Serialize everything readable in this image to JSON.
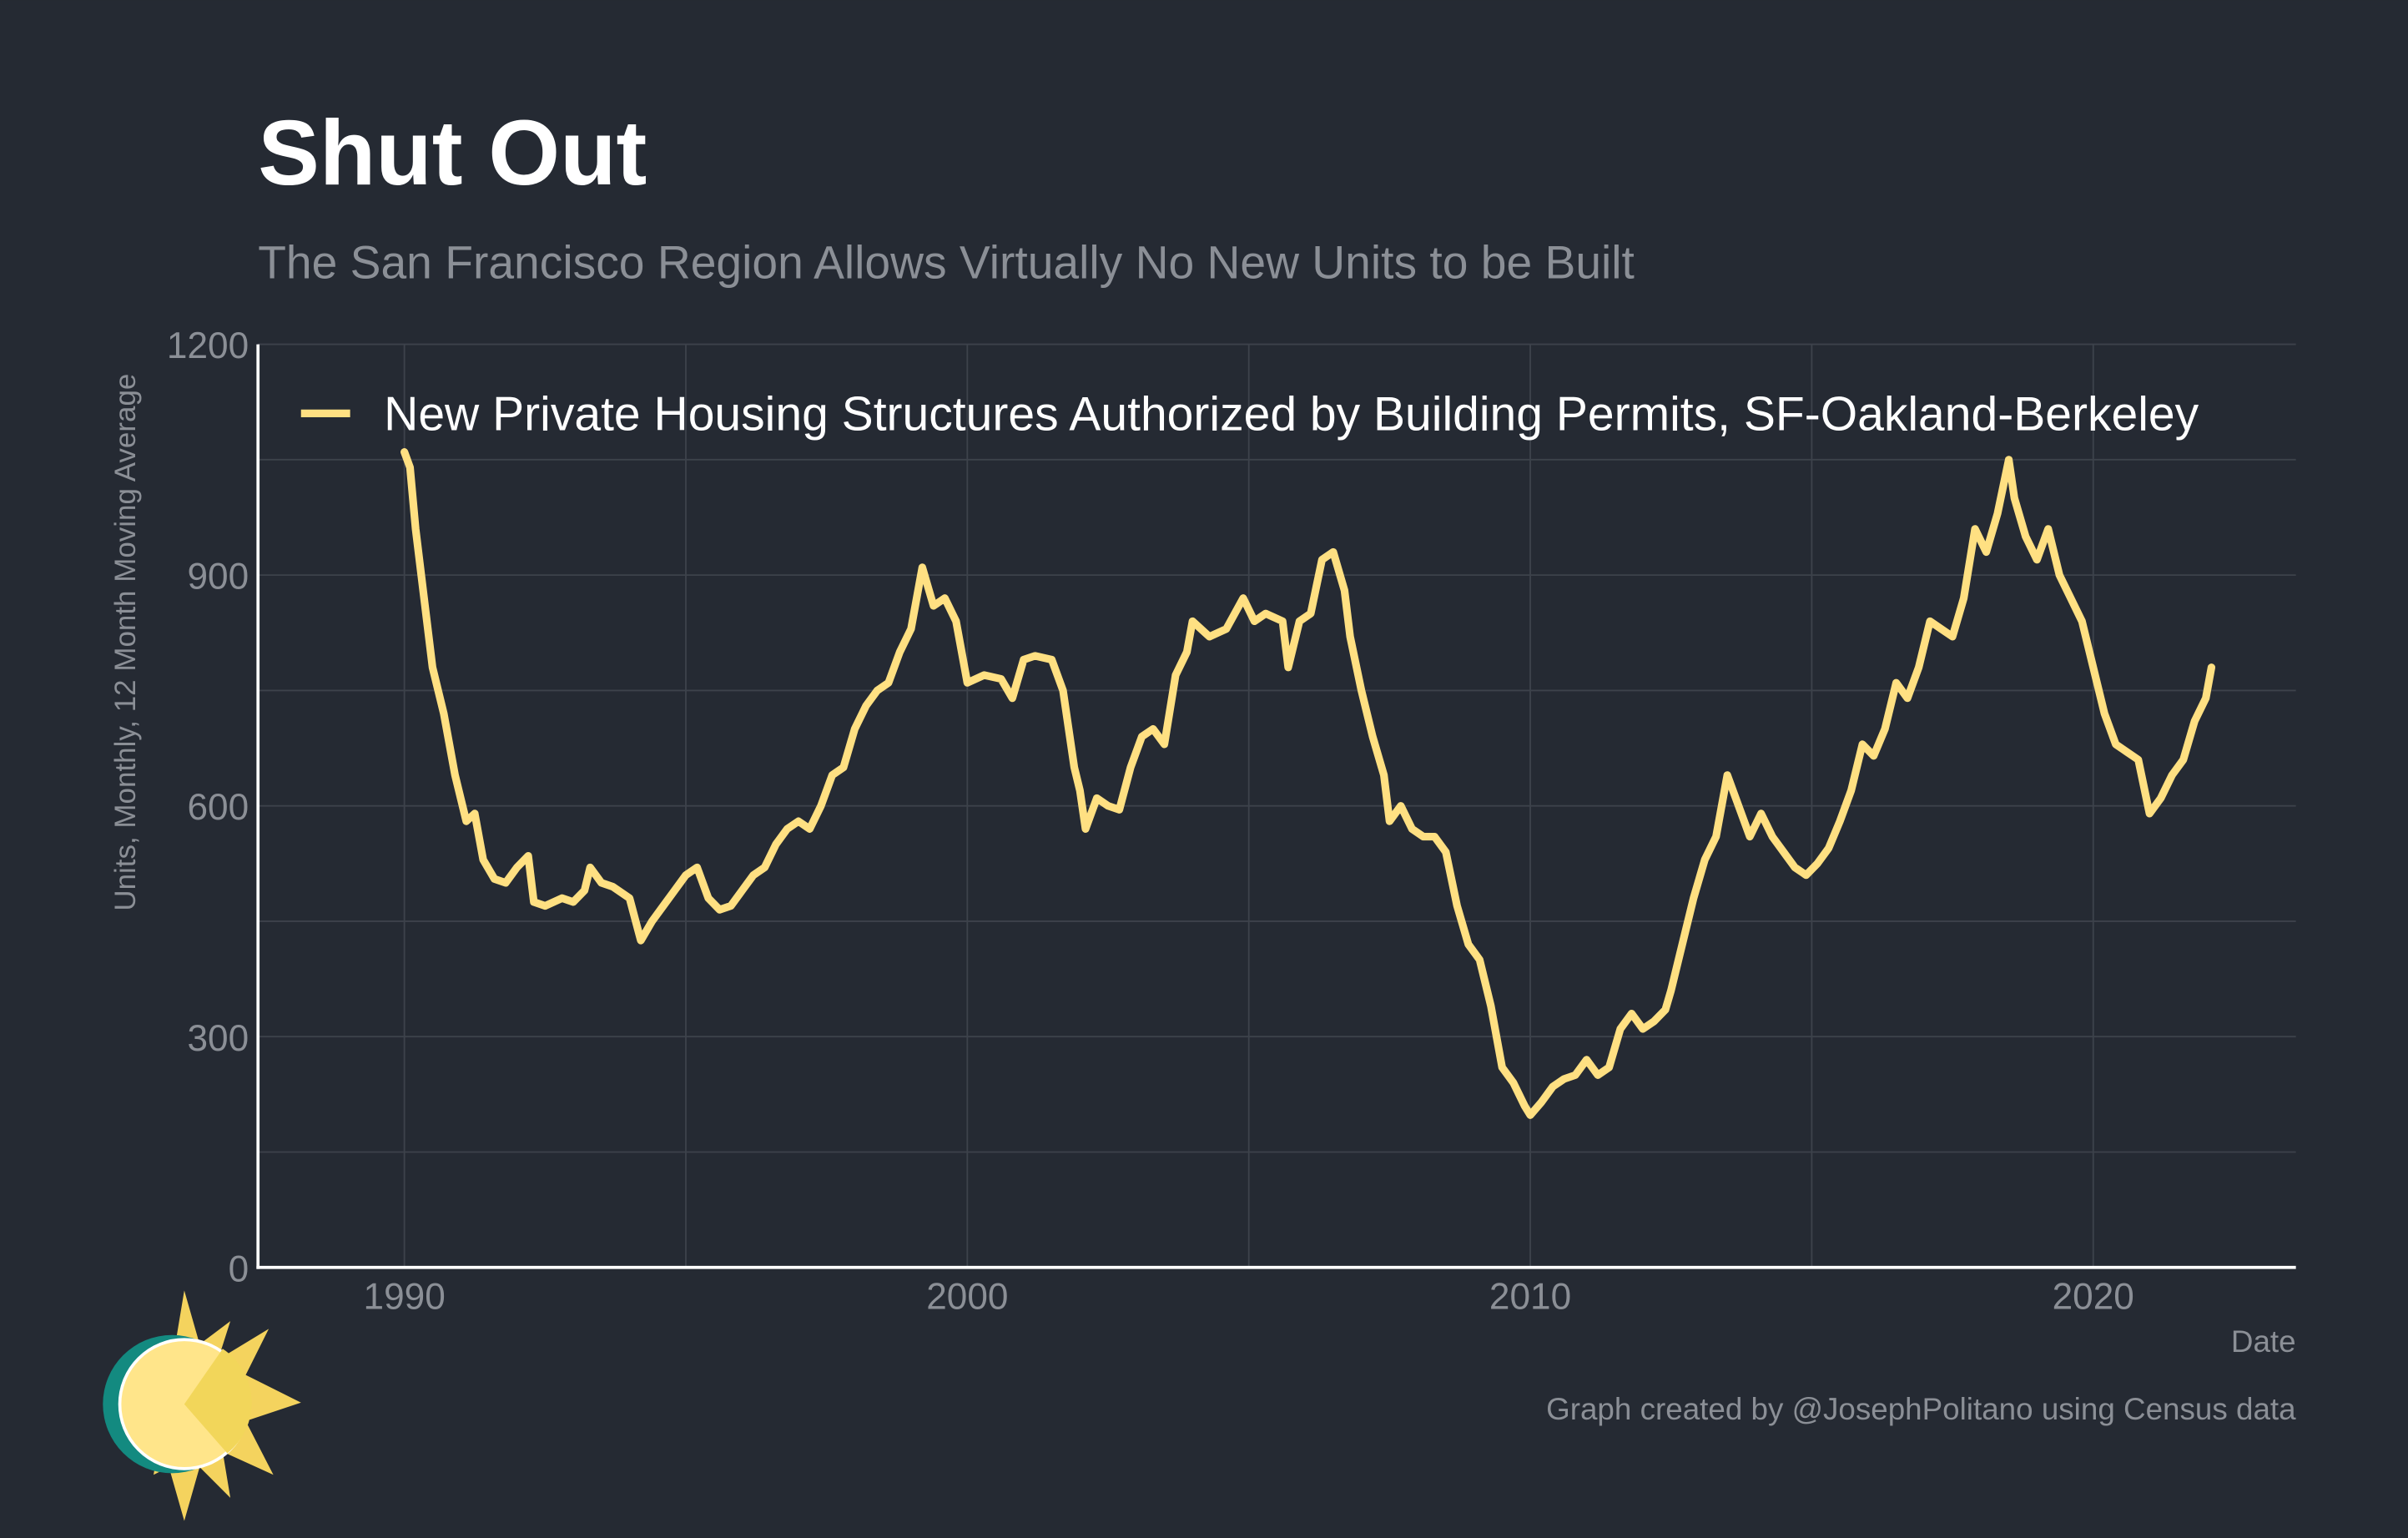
{
  "chart_data": {
    "type": "line",
    "title": "Shut Out",
    "subtitle": "The San Francisco Region Allows Virtually No New Units to be Built",
    "y_label": "Units, Monthly, 12 Month Moving Average",
    "x_label": "Date",
    "caption": "Graph created by @JosephPolitano using Census data",
    "xlim": [
      1987.4,
      2023.6
    ],
    "xticks": [
      1990,
      2000,
      2010,
      2020
    ],
    "x_minor_ticks": [
      1995,
      2005,
      2015
    ],
    "ylim": [
      0,
      1200
    ],
    "yticks": [
      0,
      300,
      600,
      900,
      1200
    ],
    "y_minor_ticks": [
      150,
      450,
      750,
      1050
    ],
    "grid": true,
    "legend": "top-left",
    "x": [
      1990.0,
      1990.1,
      1990.2,
      1990.35,
      1990.5,
      1990.7,
      1990.9,
      1991.1,
      1991.25,
      1991.4,
      1991.6,
      1991.8,
      1992.0,
      1992.2,
      1992.3,
      1992.5,
      1992.8,
      1993.0,
      1993.2,
      1993.3,
      1993.5,
      1993.7,
      1994.0,
      1994.2,
      1994.4,
      1994.6,
      1994.8,
      1995.0,
      1995.2,
      1995.4,
      1995.6,
      1995.8,
      1996.0,
      1996.2,
      1996.4,
      1996.6,
      1996.8,
      1997.0,
      1997.2,
      1997.4,
      1997.6,
      1997.8,
      1998.0,
      1998.2,
      1998.4,
      1998.6,
      1998.8,
      1999.0,
      1999.2,
      1999.4,
      1999.6,
      1999.8,
      2000.0,
      2000.3,
      2000.6,
      2000.8,
      2001.0,
      2001.2,
      2001.5,
      2001.7,
      2001.9,
      2002.0,
      2002.1,
      2002.3,
      2002.5,
      2002.7,
      2002.9,
      2003.1,
      2003.3,
      2003.5,
      2003.7,
      2003.9,
      2004.0,
      2004.3,
      2004.6,
      2004.9,
      2005.1,
      2005.3,
      2005.6,
      2005.7,
      2005.9,
      2006.1,
      2006.3,
      2006.5,
      2006.7,
      2006.8,
      2007.0,
      2007.2,
      2007.4,
      2007.5,
      2007.7,
      2007.9,
      2008.1,
      2008.3,
      2008.5,
      2008.7,
      2008.9,
      2009.1,
      2009.3,
      2009.5,
      2009.7,
      2009.9,
      2010.0,
      2010.2,
      2010.4,
      2010.6,
      2010.8,
      2011.0,
      2011.2,
      2011.4,
      2011.6,
      2011.8,
      2012.0,
      2012.2,
      2012.4,
      2012.5,
      2012.7,
      2012.9,
      2013.1,
      2013.3,
      2013.5,
      2013.7,
      2013.9,
      2014.1,
      2014.3,
      2014.5,
      2014.7,
      2014.9,
      2015.1,
      2015.3,
      2015.5,
      2015.7,
      2015.9,
      2016.1,
      2016.3,
      2016.5,
      2016.7,
      2016.9,
      2017.1,
      2017.3,
      2017.5,
      2017.7,
      2017.9,
      2018.1,
      2018.3,
      2018.5,
      2018.6,
      2018.8,
      2019.0,
      2019.2,
      2019.4,
      2019.6,
      2019.8,
      2020.0,
      2020.2,
      2020.4,
      2020.6,
      2020.8,
      2021.0,
      2021.2,
      2021.4,
      2021.6,
      2021.8,
      2022.0,
      2022.1
    ],
    "series": [
      {
        "name": "New Private Housing Structures Authorized by Building Permits, SF-Oakland-Berkeley",
        "color": "#ffe082",
        "values": [
          1060,
          1040,
          960,
          870,
          780,
          720,
          640,
          580,
          590,
          530,
          505,
          500,
          520,
          535,
          475,
          470,
          480,
          475,
          490,
          520,
          500,
          495,
          480,
          425,
          450,
          470,
          490,
          510,
          520,
          480,
          465,
          470,
          490,
          510,
          520,
          550,
          570,
          580,
          570,
          600,
          640,
          650,
          700,
          730,
          750,
          760,
          800,
          830,
          910,
          860,
          870,
          840,
          760,
          770,
          765,
          740,
          790,
          795,
          790,
          750,
          650,
          620,
          570,
          610,
          600,
          595,
          650,
          690,
          700,
          680,
          770,
          800,
          840,
          820,
          830,
          870,
          840,
          850,
          840,
          780,
          840,
          850,
          920,
          930,
          880,
          820,
          750,
          690,
          640,
          580,
          600,
          570,
          560,
          560,
          540,
          470,
          420,
          400,
          340,
          260,
          240,
          210,
          198,
          215,
          235,
          245,
          250,
          270,
          250,
          260,
          310,
          330,
          310,
          320,
          335,
          360,
          420,
          480,
          530,
          560,
          640,
          600,
          560,
          590,
          560,
          540,
          520,
          510,
          525,
          545,
          580,
          620,
          680,
          665,
          700,
          760,
          740,
          780,
          840,
          830,
          820,
          870,
          960,
          930,
          980,
          1050,
          1000,
          950,
          920,
          960,
          900,
          870,
          840,
          780,
          720,
          680,
          670,
          660,
          590,
          610,
          640,
          660,
          710,
          740,
          780
        ]
      }
    ]
  }
}
